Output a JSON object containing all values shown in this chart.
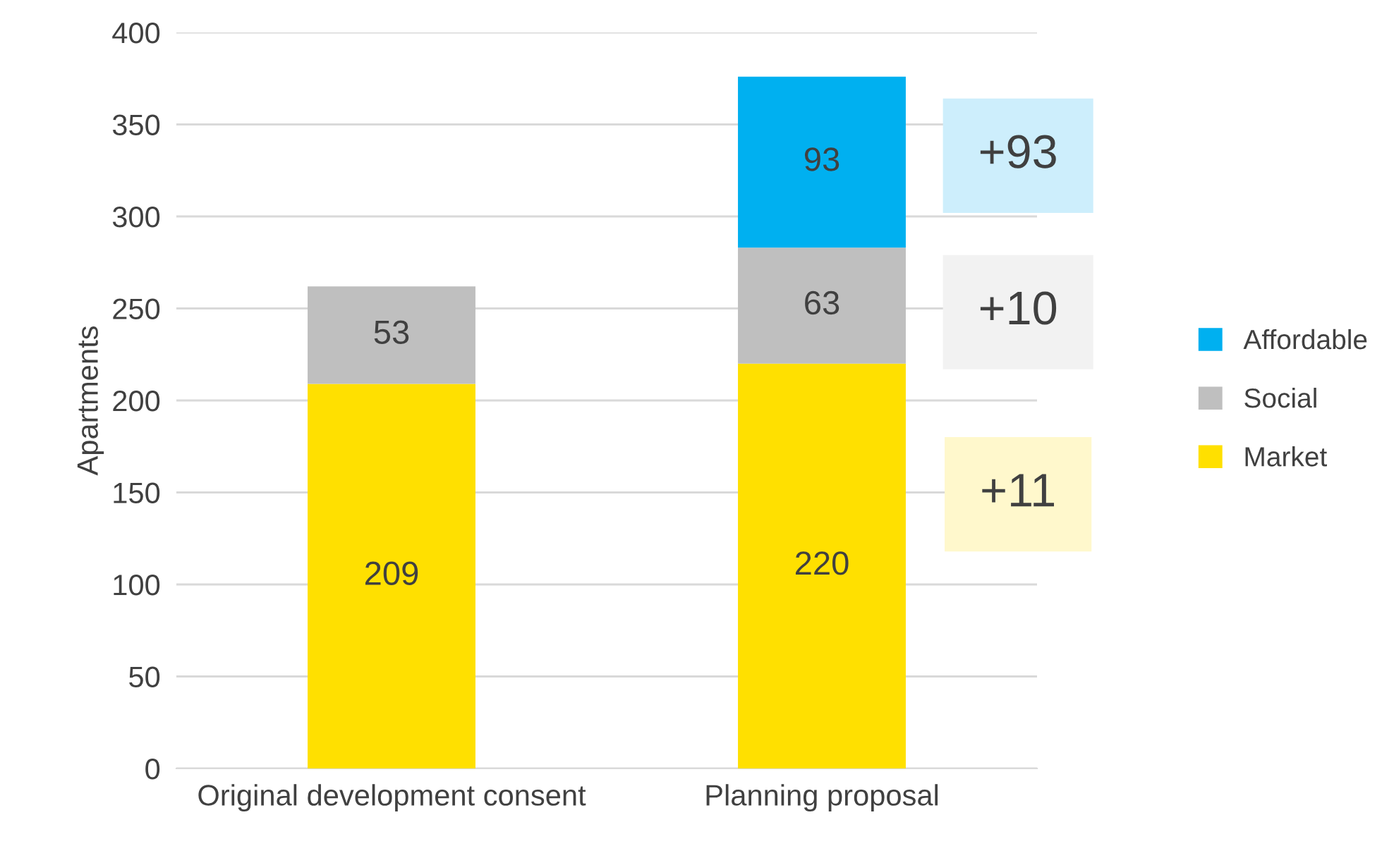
{
  "chart_data": {
    "type": "bar",
    "stacked": true,
    "ylabel": "Apartments",
    "categories": [
      "Original development consent",
      "Planning proposal"
    ],
    "series": [
      {
        "name": "Market",
        "color": "#ffe000",
        "values": [
          209,
          220
        ]
      },
      {
        "name": "Social",
        "color": "#bfbfbf",
        "values": [
          53,
          63
        ]
      },
      {
        "name": "Affordable",
        "color": "#00b0f0",
        "values": [
          null,
          93
        ]
      }
    ],
    "ylim": [
      0,
      400
    ],
    "yticks": [
      0,
      50,
      100,
      150,
      200,
      250,
      300,
      350,
      400
    ],
    "grid": "y",
    "legend": "right",
    "data_labels": true,
    "annotations": [
      "+93",
      "+10",
      "+11"
    ]
  }
}
